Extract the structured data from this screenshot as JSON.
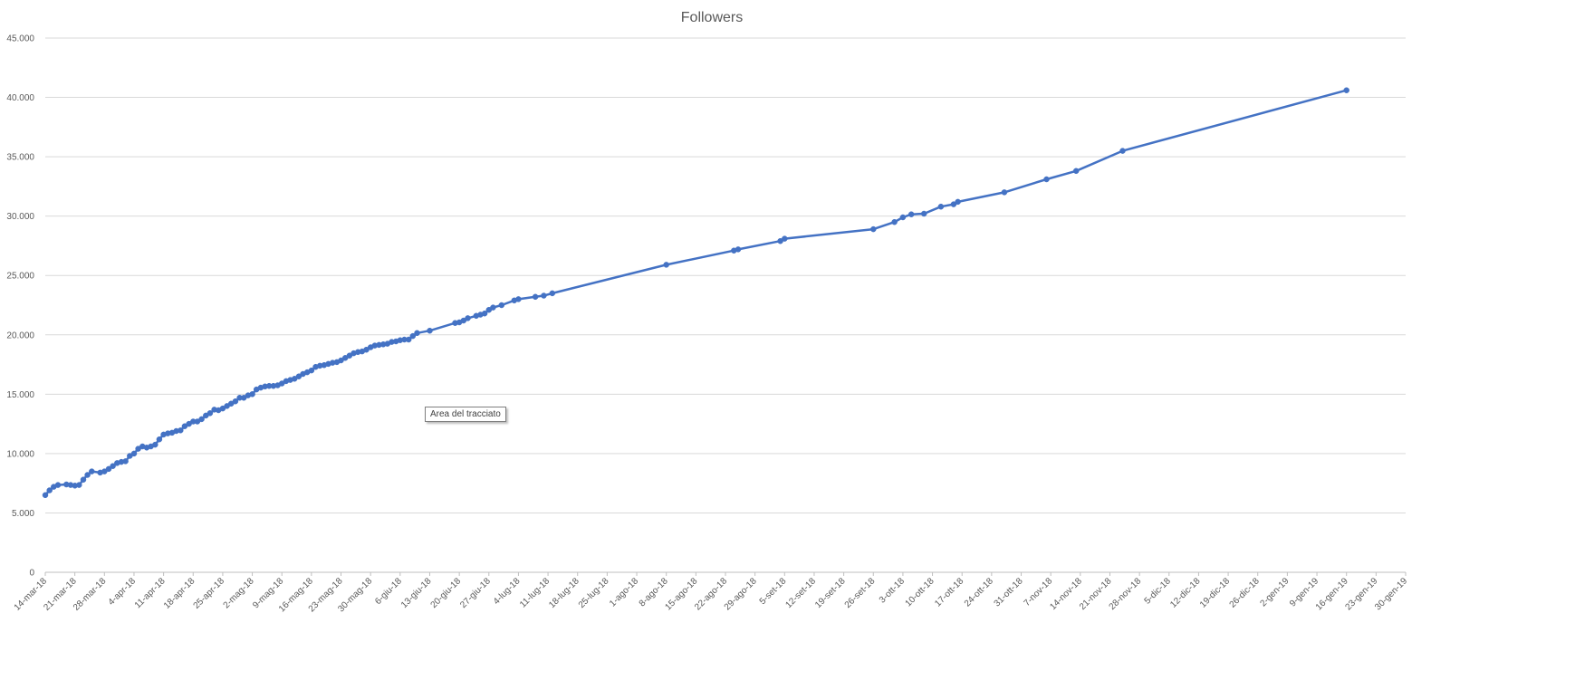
{
  "chart_data": {
    "type": "line",
    "title": "Followers",
    "xlabel": "",
    "ylabel": "",
    "ylim": [
      0,
      45000
    ],
    "xlim": [
      "2018-03-14",
      "2019-01-30"
    ],
    "y_ticks": [
      0,
      5000,
      10000,
      15000,
      20000,
      25000,
      30000,
      35000,
      40000,
      45000
    ],
    "y_tick_labels": [
      "0",
      "5.000",
      "10.000",
      "15.000",
      "20.000",
      "25.000",
      "30.000",
      "35.000",
      "40.000",
      "45.000"
    ],
    "x_tick_labels": [
      "14-mar-18",
      "21-mar-18",
      "28-mar-18",
      "4-apr-18",
      "11-apr-18",
      "18-apr-18",
      "25-apr-18",
      "2-mag-18",
      "9-mag-18",
      "16-mag-18",
      "23-mag-18",
      "30-mag-18",
      "6-giu-18",
      "13-giu-18",
      "20-giu-18",
      "27-giu-18",
      "4-lug-18",
      "11-lug-18",
      "18-lug-18",
      "25-lug-18",
      "1-ago-18",
      "8-ago-18",
      "15-ago-18",
      "22-ago-18",
      "29-ago-18",
      "5-set-18",
      "12-set-18",
      "19-set-18",
      "26-set-18",
      "3-ott-18",
      "10-ott-18",
      "17-ott-18",
      "24-ott-18",
      "31-ott-18",
      "7-nov-18",
      "14-nov-18",
      "21-nov-18",
      "28-nov-18",
      "5-dic-18",
      "12-dic-18",
      "19-dic-18",
      "26-dic-18",
      "2-gen-19",
      "9-gen-19",
      "16-gen-19",
      "23-gen-19",
      "30-gen-19"
    ],
    "grid": true,
    "legend": "none",
    "color": "#4472C4",
    "series": [
      {
        "x": [
          "2018-03-14",
          "2018-03-15",
          "2018-03-16",
          "2018-03-17",
          "2018-03-19",
          "2018-03-20",
          "2018-03-21",
          "2018-03-22",
          "2018-03-23",
          "2018-03-24",
          "2018-03-25",
          "2018-03-27",
          "2018-03-28",
          "2018-03-29",
          "2018-03-30",
          "2018-03-31",
          "2018-04-01",
          "2018-04-02",
          "2018-04-03",
          "2018-04-04",
          "2018-04-05",
          "2018-04-06",
          "2018-04-07",
          "2018-04-08",
          "2018-04-09",
          "2018-04-10",
          "2018-04-11",
          "2018-04-12",
          "2018-04-13",
          "2018-04-14",
          "2018-04-15",
          "2018-04-16",
          "2018-04-17",
          "2018-04-18",
          "2018-04-19",
          "2018-04-20",
          "2018-04-21",
          "2018-04-22",
          "2018-04-23",
          "2018-04-24",
          "2018-04-25",
          "2018-04-26",
          "2018-04-27",
          "2018-04-28",
          "2018-04-29",
          "2018-04-30",
          "2018-05-01",
          "2018-05-02",
          "2018-05-03",
          "2018-05-04",
          "2018-05-05",
          "2018-05-06",
          "2018-05-07",
          "2018-05-08",
          "2018-05-09",
          "2018-05-10",
          "2018-05-11",
          "2018-05-12",
          "2018-05-13",
          "2018-05-14",
          "2018-05-15",
          "2018-05-16",
          "2018-05-17",
          "2018-05-18",
          "2018-05-19",
          "2018-05-20",
          "2018-05-21",
          "2018-05-22",
          "2018-05-23",
          "2018-05-24",
          "2018-05-25",
          "2018-05-26",
          "2018-05-27",
          "2018-05-28",
          "2018-05-29",
          "2018-05-30",
          "2018-05-31",
          "2018-06-01",
          "2018-06-02",
          "2018-06-03",
          "2018-06-04",
          "2018-06-05",
          "2018-06-06",
          "2018-06-07",
          "2018-06-08",
          "2018-06-09",
          "2018-06-10",
          "2018-06-13",
          "2018-06-19",
          "2018-06-20",
          "2018-06-21",
          "2018-06-22",
          "2018-06-24",
          "2018-06-25",
          "2018-06-26",
          "2018-06-27",
          "2018-06-28",
          "2018-06-30",
          "2018-07-03",
          "2018-07-04",
          "2018-07-08",
          "2018-07-10",
          "2018-07-12",
          "2018-08-08",
          "2018-08-24",
          "2018-08-25",
          "2018-09-04",
          "2018-09-05",
          "2018-09-26",
          "2018-10-01",
          "2018-10-03",
          "2018-10-05",
          "2018-10-08",
          "2018-10-12",
          "2018-10-15",
          "2018-10-16",
          "2018-10-27",
          "2018-11-06",
          "2018-11-13",
          "2018-11-24",
          "2019-01-16"
        ],
        "y": [
          6500,
          6900,
          7200,
          7350,
          7400,
          7350,
          7300,
          7350,
          7800,
          8200,
          8500,
          8400,
          8500,
          8700,
          8950,
          9200,
          9300,
          9350,
          9800,
          10000,
          10400,
          10600,
          10500,
          10600,
          10750,
          11200,
          11600,
          11700,
          11750,
          11900,
          11950,
          12300,
          12500,
          12700,
          12700,
          12900,
          13200,
          13400,
          13700,
          13650,
          13800,
          14000,
          14200,
          14400,
          14700,
          14700,
          14900,
          15000,
          15400,
          15550,
          15650,
          15700,
          15700,
          15750,
          15900,
          16100,
          16200,
          16300,
          16500,
          16700,
          16850,
          17000,
          17300,
          17400,
          17450,
          17550,
          17650,
          17700,
          17850,
          18050,
          18250,
          18450,
          18550,
          18600,
          18750,
          18950,
          19100,
          19150,
          19200,
          19250,
          19400,
          19450,
          19550,
          19600,
          19600,
          19900,
          20150,
          20350,
          21000,
          21050,
          21200,
          21400,
          21600,
          21700,
          21800,
          22100,
          22300,
          22500,
          22900,
          23000,
          23200,
          23300,
          23500,
          25900,
          27100,
          27200,
          27900,
          28100,
          28900,
          29500,
          29900,
          30150,
          30200,
          30800,
          31000,
          31200,
          32000,
          33100,
          33800,
          35500,
          40600
        ]
      }
    ]
  },
  "tooltip_text": "Area del tracciato"
}
